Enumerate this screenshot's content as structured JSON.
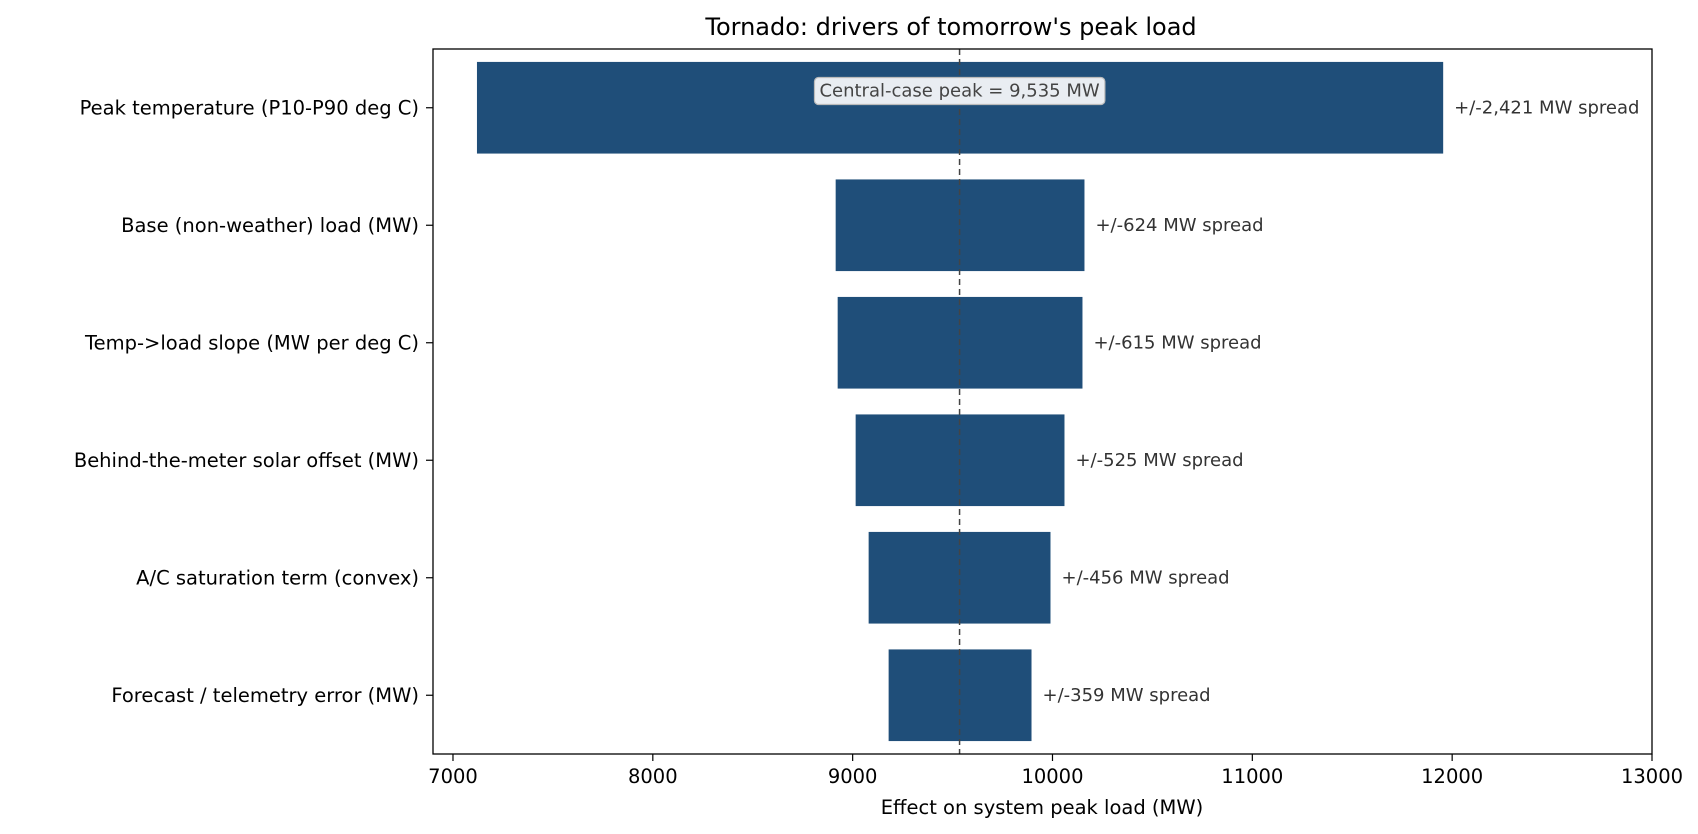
{
  "chart_data": {
    "type": "bar",
    "orientation": "horizontal",
    "title": "Tornado: drivers of tomorrow's peak load",
    "xlabel": "Effect on system peak load  (MW)",
    "ylabel": "",
    "xlim": [
      6900,
      13000
    ],
    "xticks": [
      7000,
      8000,
      9000,
      10000,
      11000,
      12000,
      13000
    ],
    "grid": false,
    "central_case": 9535,
    "central_annotation": "Central-case peak = 9,535 MW",
    "bar_color": "#1f4e79",
    "categories": [
      "Peak temperature  (P10-P90 deg C)",
      "Base (non-weather) load  (MW)",
      "Temp->load slope  (MW per deg C)",
      "Behind-the-meter solar offset  (MW)",
      "A/C saturation term  (convex)",
      "Forecast / telemetry error  (MW)"
    ],
    "low": [
      7120,
      8915,
      8925,
      9015,
      9080,
      9180
    ],
    "high": [
      11955,
      10160,
      10150,
      10060,
      9990,
      9895
    ],
    "spread_labels": [
      "+/-2,421 MW spread",
      "+/-624 MW spread",
      "+/-615 MW spread",
      "+/-525 MW spread",
      "+/-456 MW spread",
      "+/-359 MW spread"
    ]
  }
}
